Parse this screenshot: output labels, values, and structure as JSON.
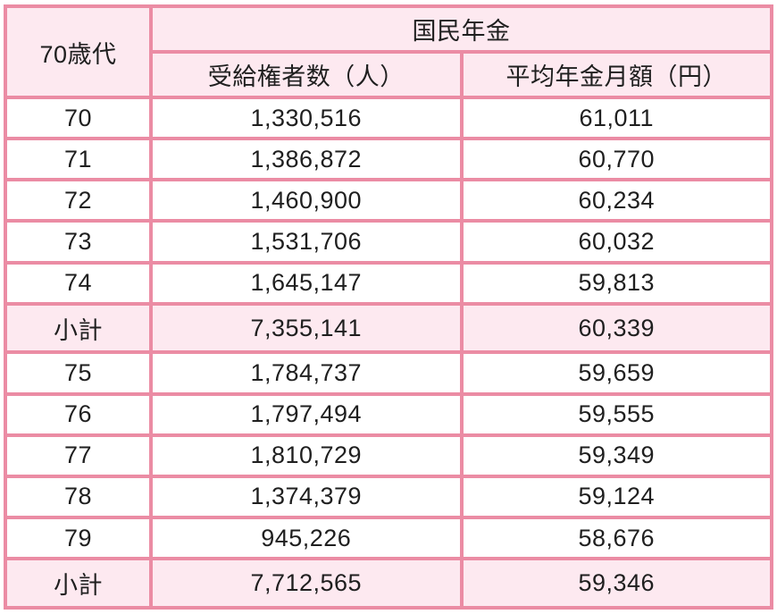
{
  "table": {
    "header": {
      "age_group_label": "70歳代",
      "pension_type_label": "国民年金",
      "col_beneficiaries_label": "受給権者数（人）",
      "col_avg_monthly_label": "平均年金月額（円）"
    },
    "rows": [
      {
        "age": "70",
        "beneficiaries": "1,330,516",
        "avg_monthly": "61,011",
        "subtotal": false
      },
      {
        "age": "71",
        "beneficiaries": "1,386,872",
        "avg_monthly": "60,770",
        "subtotal": false
      },
      {
        "age": "72",
        "beneficiaries": "1,460,900",
        "avg_monthly": "60,234",
        "subtotal": false
      },
      {
        "age": "73",
        "beneficiaries": "1,531,706",
        "avg_monthly": "60,032",
        "subtotal": false
      },
      {
        "age": "74",
        "beneficiaries": "1,645,147",
        "avg_monthly": "59,813",
        "subtotal": false
      },
      {
        "age": "小計",
        "beneficiaries": "7,355,141",
        "avg_monthly": "60,339",
        "subtotal": true
      },
      {
        "age": "75",
        "beneficiaries": "1,784,737",
        "avg_monthly": "59,659",
        "subtotal": false
      },
      {
        "age": "76",
        "beneficiaries": "1,797,494",
        "avg_monthly": "59,555",
        "subtotal": false
      },
      {
        "age": "77",
        "beneficiaries": "1,810,729",
        "avg_monthly": "59,349",
        "subtotal": false
      },
      {
        "age": "78",
        "beneficiaries": "1,374,379",
        "avg_monthly": "59,124",
        "subtotal": false
      },
      {
        "age": "79",
        "beneficiaries": "945,226",
        "avg_monthly": "58,676",
        "subtotal": false
      },
      {
        "age": "小計",
        "beneficiaries": "7,712,565",
        "avg_monthly": "59,346",
        "subtotal": true
      }
    ],
    "colors": {
      "border": "#eb8ca4",
      "header_bg": "#fde9f0",
      "subtotal_bg": "#fde9f0",
      "row_bg": "#ffffff",
      "text": "#1f1f1f"
    }
  },
  "chart_data": {
    "type": "table",
    "title": "国民年金 70歳代 受給権者数・平均年金月額",
    "columns": [
      "70歳代",
      "受給権者数（人）",
      "平均年金月額（円）"
    ],
    "rows": [
      [
        "70",
        1330516,
        61011
      ],
      [
        "71",
        1386872,
        60770
      ],
      [
        "72",
        1460900,
        60234
      ],
      [
        "73",
        1531706,
        60032
      ],
      [
        "74",
        1645147,
        59813
      ],
      [
        "小計",
        7355141,
        60339
      ],
      [
        "75",
        1784737,
        59659
      ],
      [
        "76",
        1797494,
        59555
      ],
      [
        "77",
        1810729,
        59349
      ],
      [
        "78",
        1374379,
        59124
      ],
      [
        "79",
        945226,
        58676
      ],
      [
        "小計",
        7712565,
        59346
      ]
    ]
  }
}
